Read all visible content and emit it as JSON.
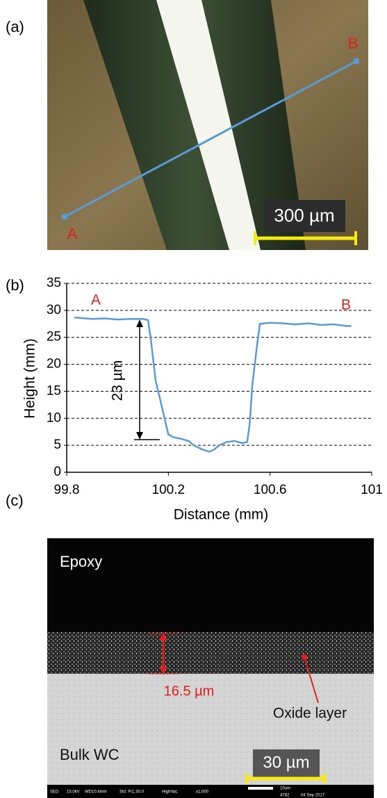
{
  "panel_a": {
    "label": "(a)",
    "point_a": "A",
    "point_b": "B",
    "scale_bar": "300 µm"
  },
  "chart_data": {
    "type": "line",
    "label": "(b)",
    "x_label": "Distance (mm)",
    "y_label": "Height (mm)",
    "annotations": [
      "A",
      "B",
      "23 µm"
    ],
    "x": [
      99.83,
      99.9,
      99.95,
      100.0,
      100.05,
      100.1,
      100.12,
      100.13,
      100.15,
      100.17,
      100.19,
      100.2,
      100.22,
      100.25,
      100.28,
      100.3,
      100.33,
      100.36,
      100.38,
      100.4,
      100.43,
      100.46,
      100.49,
      100.51,
      100.52,
      100.53,
      100.55,
      100.56,
      100.6,
      100.65,
      100.7,
      100.75,
      100.8,
      100.85,
      100.9,
      100.92
    ],
    "series": [
      {
        "color": "#5b9bd5",
        "values": [
          28.7,
          28.4,
          28.5,
          28.3,
          28.4,
          28.4,
          28.2,
          25,
          17,
          13,
          9,
          7,
          6.5,
          6.2,
          5.8,
          5,
          4.3,
          3.8,
          4.2,
          5,
          5.6,
          5.8,
          5.4,
          5.6,
          9,
          16,
          24,
          27.5,
          27.7,
          27.6,
          27.4,
          27.6,
          27.3,
          27.4,
          27.1,
          27.1
        ]
      }
    ],
    "xlim": [
      99.8,
      101
    ],
    "xticks": [
      99.8,
      100.2,
      100.6,
      101
    ],
    "ylim": [
      0,
      35
    ],
    "yticks": [
      0,
      5,
      10,
      15,
      20,
      25,
      30,
      35
    ],
    "grid": true
  },
  "panel_c": {
    "label": "(c)",
    "top_layer": "Epoxy",
    "thickness": "16.5 µm",
    "oxide_label": "Oxide layer",
    "bulk_label": "Bulk WC",
    "scale_bar": "30 µm",
    "sem_info": [
      "SED",
      "15.0kV",
      "WD10.4mm",
      "Std. P.C.30.0",
      "HighVac.",
      "x1,000",
      "10um",
      "4782",
      "04 Sep 2017"
    ]
  }
}
